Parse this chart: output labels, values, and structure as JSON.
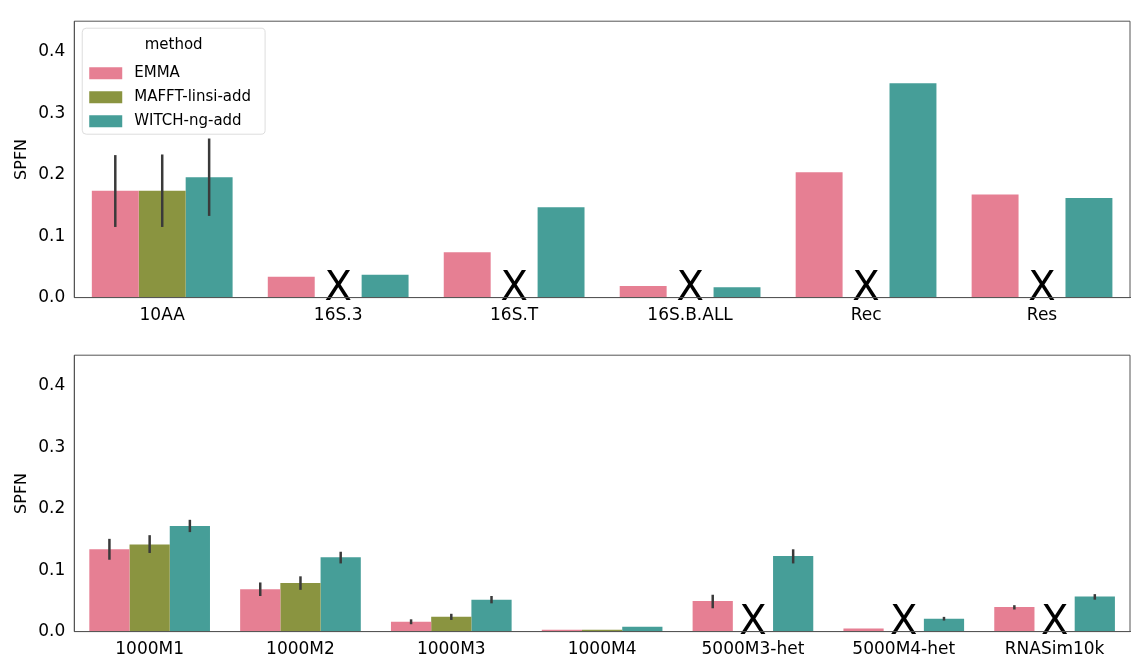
{
  "chart_data": [
    {
      "type": "bar",
      "ylabel": "SPFN",
      "legend_title": "method",
      "legend": "top left",
      "categories": [
        "10AA",
        "16S.3",
        "16S.T",
        "16S.B.ALL",
        "Rec",
        "Res"
      ],
      "series": [
        {
          "name": "EMMA",
          "color": "#e67f93",
          "values": [
            0.174,
            0.034,
            0.074,
            0.019,
            0.204,
            0.168
          ],
          "errors": [
            [
              0.115,
              0.232
            ],
            null,
            null,
            null,
            null,
            null
          ]
        },
        {
          "name": "MAFFT-linsi-add",
          "color": "#8a9440",
          "values": [
            0.174,
            null,
            null,
            null,
            null,
            null
          ],
          "errors": [
            [
              0.115,
              0.233
            ],
            null,
            null,
            null,
            null,
            null
          ]
        },
        {
          "name": "WITCH-ng-add",
          "color": "#469e98",
          "values": [
            0.196,
            0.037,
            0.147,
            0.017,
            0.349,
            0.162
          ],
          "errors": [
            [
              0.133,
              0.259
            ],
            null,
            null,
            null,
            null,
            null
          ]
        }
      ],
      "ylim": [
        0,
        0.45
      ],
      "yticks": [
        {
          "value": 0,
          "label": "0.0"
        },
        0.1,
        0.2,
        0.3,
        0.4
      ],
      "annotations": [
        "X",
        "X",
        "X",
        "X",
        "X"
      ]
    },
    {
      "type": "bar",
      "ylabel": "SPFN",
      "categories": [
        "1000M1",
        "1000M2",
        "1000M3",
        "1000M4",
        "5000M3-het",
        "5000M4-het",
        "RNASim10k"
      ],
      "series": [
        {
          "color": "#e67f93",
          "values": [
            0.134,
            0.069,
            0.016,
            0.003,
            0.05,
            0.005,
            0.04
          ],
          "errors": [
            [
              0.117,
              0.151
            ],
            [
              0.058,
              0.08
            ],
            [
              0.012,
              0.02
            ],
            null,
            [
              0.038,
              0.06
            ],
            null,
            [
              0.036,
              0.043
            ]
          ]
        },
        {
          "color": "#8a9440",
          "values": [
            0.142,
            0.079,
            0.024,
            0.003,
            null,
            null,
            null
          ],
          "errors": [
            [
              0.128,
              0.157
            ],
            [
              0.068,
              0.09
            ],
            [
              0.019,
              0.029
            ],
            null,
            null,
            null,
            null
          ]
        },
        {
          "color": "#469e98",
          "values": [
            0.172,
            0.121,
            0.052,
            0.008,
            0.123,
            0.021,
            0.057
          ],
          "errors": [
            [
              0.162,
              0.182
            ],
            [
              0.111,
              0.13
            ],
            [
              0.046,
              0.058
            ],
            null,
            [
              0.111,
              0.134
            ],
            [
              0.018,
              0.024
            ],
            [
              0.052,
              0.061
            ]
          ]
        }
      ],
      "ylim": [
        0,
        0.45
      ],
      "yticks": [
        {
          "value": 0,
          "label": "0.0"
        },
        0.1,
        0.2,
        0.3,
        0.4
      ],
      "annotations": [
        "X",
        "X",
        "X"
      ]
    }
  ]
}
